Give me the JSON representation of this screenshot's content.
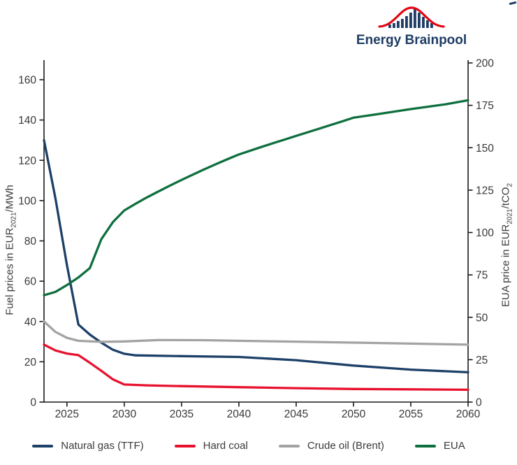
{
  "logo": {
    "text": "Energy Brainpool",
    "text_color": "#1e3c64",
    "bar_color": "#1e3c64",
    "curve_color": "#e30613"
  },
  "chart_data": {
    "type": "line",
    "title": "",
    "grid": false,
    "legend_position": "bottom",
    "x_axis": {
      "range": [
        2023,
        2060
      ],
      "ticks": [
        2025,
        2030,
        2035,
        2040,
        2045,
        2050,
        2055,
        2060
      ]
    },
    "left_axis": {
      "label_prefix": "Fuel prices in EUR",
      "label_sub": "2021",
      "label_suffix": "/MWh",
      "range": [
        0,
        160
      ],
      "ticks": [
        0,
        20,
        40,
        60,
        80,
        100,
        120,
        140,
        160
      ]
    },
    "right_axis": {
      "label_prefix": "EUA price in EUR",
      "label_sub": "2021",
      "label_mid": "/tCO",
      "label_sub2": "2",
      "range": [
        0,
        200
      ],
      "ticks": [
        0,
        25,
        50,
        75,
        100,
        125,
        150,
        175,
        200
      ]
    },
    "series": [
      {
        "name": "Natural gas (TTF)",
        "axis": "left",
        "color": "#1d4068",
        "points": [
          [
            2023,
            130
          ],
          [
            2024,
            101
          ],
          [
            2025,
            68
          ],
          [
            2026,
            38.5
          ],
          [
            2027,
            33.5
          ],
          [
            2028,
            29.5
          ],
          [
            2029,
            26
          ],
          [
            2030,
            24
          ],
          [
            2031,
            23.2
          ],
          [
            2035,
            22.8
          ],
          [
            2040,
            22.4
          ],
          [
            2045,
            20.8
          ],
          [
            2050,
            18.1
          ],
          [
            2055,
            16.1
          ],
          [
            2060,
            14.8
          ]
        ]
      },
      {
        "name": "Hard coal",
        "axis": "left",
        "color": "#e8112d",
        "points": [
          [
            2023,
            28.5
          ],
          [
            2024,
            25.6
          ],
          [
            2025,
            24.1
          ],
          [
            2026,
            23.3
          ],
          [
            2027,
            19.5
          ],
          [
            2028,
            15.5
          ],
          [
            2029,
            11.3
          ],
          [
            2030,
            8.7
          ],
          [
            2032,
            8.3
          ],
          [
            2035,
            7.9
          ],
          [
            2040,
            7.4
          ],
          [
            2045,
            6.9
          ],
          [
            2050,
            6.5
          ],
          [
            2055,
            6.3
          ],
          [
            2060,
            6.1
          ]
        ]
      },
      {
        "name": "Crude oil (Brent)",
        "axis": "left",
        "color": "#a3a3a3",
        "points": [
          [
            2023,
            40
          ],
          [
            2024,
            34.8
          ],
          [
            2025,
            31.9
          ],
          [
            2026,
            30.4
          ],
          [
            2028,
            29.9
          ],
          [
            2030,
            30.1
          ],
          [
            2033,
            30.8
          ],
          [
            2037,
            30.7
          ],
          [
            2040,
            30.4
          ],
          [
            2045,
            30
          ],
          [
            2050,
            29.5
          ],
          [
            2055,
            29
          ],
          [
            2060,
            28.5
          ]
        ]
      },
      {
        "name": "EUA",
        "axis": "right",
        "color": "#0e6f3e",
        "points": [
          [
            2023,
            63
          ],
          [
            2024,
            65
          ],
          [
            2025,
            69
          ],
          [
            2026,
            73.5
          ],
          [
            2027,
            79
          ],
          [
            2028,
            96
          ],
          [
            2029,
            106
          ],
          [
            2030,
            113
          ],
          [
            2031,
            117
          ],
          [
            2032,
            120.8
          ],
          [
            2033,
            124.3
          ],
          [
            2034,
            127.7
          ],
          [
            2035,
            131
          ],
          [
            2036,
            134.2
          ],
          [
            2037,
            137.3
          ],
          [
            2038,
            140.3
          ],
          [
            2039,
            143.2
          ],
          [
            2040,
            146
          ],
          [
            2041,
            148.3
          ],
          [
            2042,
            150.5
          ],
          [
            2043,
            152.7
          ],
          [
            2044,
            154.8
          ],
          [
            2045,
            157
          ],
          [
            2046,
            159.1
          ],
          [
            2047,
            161.2
          ],
          [
            2048,
            163.4
          ],
          [
            2049,
            165.5
          ],
          [
            2050,
            167.7
          ],
          [
            2052,
            169.7
          ],
          [
            2055,
            172.8
          ],
          [
            2058,
            175.6
          ],
          [
            2060,
            178
          ]
        ]
      }
    ]
  }
}
